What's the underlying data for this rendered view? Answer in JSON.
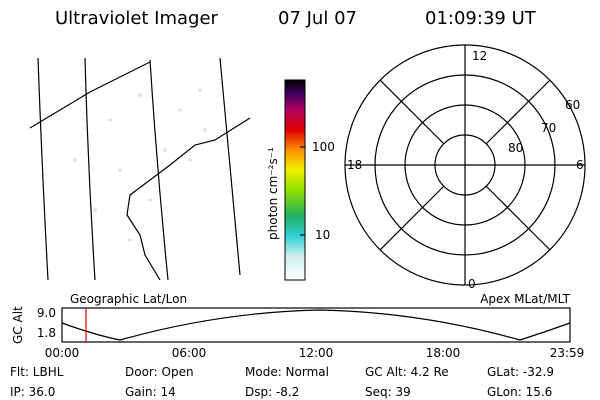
{
  "header": {
    "title": "Ultraviolet Imager",
    "date": "07 Jul 07",
    "time": "01:09:39 UT"
  },
  "colorbar": {
    "label": "photon cm⁻²s⁻¹",
    "ticks": [
      "100",
      "10"
    ]
  },
  "polar": {
    "mlt_labels": [
      "12",
      "6",
      "0",
      "18"
    ],
    "lat_labels": [
      "60",
      "70",
      "80"
    ]
  },
  "strip": {
    "left_title": "Geographic Lat/Lon",
    "right_title": "Apex MLat/MLT",
    "y_label": "GC Alt",
    "y_ticks": [
      "9.0",
      "1.8"
    ],
    "x_ticks": [
      "00:00",
      "06:00",
      "12:00",
      "18:00",
      "23:59"
    ]
  },
  "info": {
    "rows": [
      [
        "Flt: LBHL",
        "Door: Open",
        "Mode: Normal",
        "GC Alt: 4.2 Re",
        "GLat: -32.9"
      ],
      [
        "IP: 36.0",
        "Gain: 14",
        "Dsp: -8.2",
        "Seq: 39",
        "GLon: 15.6"
      ]
    ]
  }
}
